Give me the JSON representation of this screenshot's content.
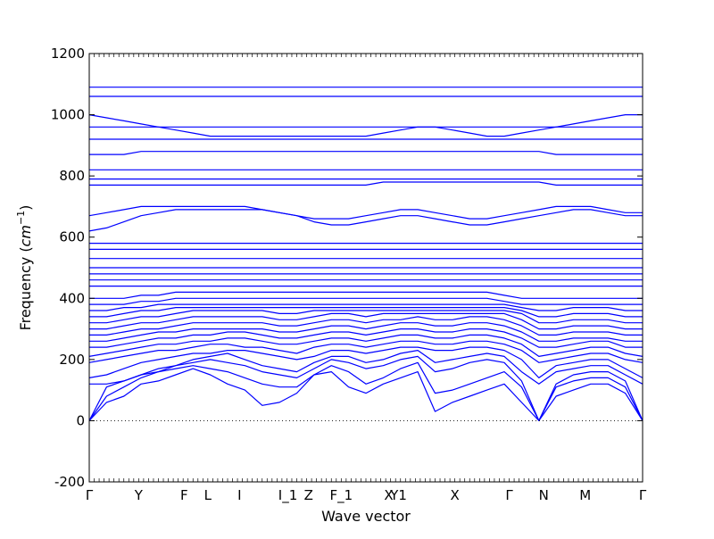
{
  "chart_data": {
    "type": "line",
    "xlabel": "Wave vector",
    "ylabel": "Frequency (cm⁻¹)",
    "ylabel_parts": {
      "prefix": "Frequency (",
      "unit": "cm",
      "exponent": "−1",
      "suffix": ")"
    },
    "ylim": [
      -200,
      1200
    ],
    "yticks": [
      -200,
      0,
      200,
      400,
      600,
      800,
      1000,
      1200
    ],
    "zero_line": "dotted",
    "grid": false,
    "legend": "none",
    "line_color": "#0000ff",
    "high_symmetry_points": [
      {
        "label": "Γ",
        "x": 0.0
      },
      {
        "label": "Y",
        "x": 0.5
      },
      {
        "label": "F",
        "x": 0.96
      },
      {
        "label": "L",
        "x": 1.2
      },
      {
        "label": "I",
        "x": 1.52
      },
      {
        "label": "I_1",
        "x": 2.01
      },
      {
        "label": "Z",
        "x": 2.22
      },
      {
        "label": "F_1",
        "x": 2.55
      },
      {
        "label": "X",
        "x": 3.03
      },
      {
        "label": "Y1",
        "x": 3.13
      },
      {
        "label": "X",
        "x": 3.7
      },
      {
        "label": "Γ",
        "x": 4.25
      },
      {
        "label": "N",
        "x": 4.6
      },
      {
        "label": "M",
        "x": 5.02
      },
      {
        "label": "Γ",
        "x": 5.6
      }
    ],
    "xlim": [
      0,
      5.6
    ],
    "series": [
      {
        "values": [
          0,
          60,
          80,
          120,
          130,
          150,
          170,
          150,
          120,
          100,
          50,
          60,
          90,
          150,
          160,
          110,
          90,
          120,
          140,
          160,
          30,
          60,
          80,
          100,
          120,
          60,
          0,
          80,
          100,
          120,
          120,
          90,
          0
        ]
      },
      {
        "values": [
          0,
          80,
          110,
          140,
          160,
          170,
          180,
          170,
          160,
          140,
          120,
          110,
          110,
          150,
          180,
          160,
          120,
          140,
          170,
          190,
          90,
          100,
          120,
          140,
          160,
          110,
          0,
          110,
          130,
          140,
          140,
          110,
          0
        ]
      },
      {
        "values": [
          0,
          110,
          130,
          150,
          170,
          180,
          190,
          200,
          190,
          180,
          160,
          150,
          140,
          170,
          200,
          190,
          170,
          180,
          200,
          210,
          160,
          170,
          190,
          200,
          190,
          130,
          0,
          120,
          150,
          160,
          160,
          130,
          0
        ]
      },
      {
        "values": [
          120,
          120,
          130,
          150,
          160,
          180,
          200,
          210,
          220,
          200,
          180,
          170,
          160,
          190,
          210,
          210,
          190,
          200,
          220,
          230,
          190,
          200,
          210,
          220,
          210,
          160,
          120,
          160,
          170,
          180,
          180,
          150,
          120
        ]
      },
      {
        "values": [
          140,
          150,
          170,
          190,
          200,
          210,
          220,
          220,
          230,
          230,
          220,
          210,
          200,
          210,
          230,
          230,
          220,
          230,
          240,
          240,
          230,
          230,
          240,
          240,
          230,
          200,
          140,
          180,
          190,
          200,
          200,
          170,
          140
        ]
      },
      {
        "values": [
          190,
          200,
          210,
          220,
          230,
          230,
          240,
          250,
          250,
          240,
          240,
          230,
          220,
          240,
          250,
          250,
          240,
          250,
          260,
          260,
          250,
          250,
          260,
          260,
          250,
          230,
          190,
          200,
          210,
          220,
          220,
          200,
          190
        ]
      },
      {
        "values": [
          210,
          220,
          230,
          240,
          250,
          250,
          260,
          260,
          270,
          270,
          260,
          250,
          250,
          260,
          270,
          270,
          260,
          270,
          280,
          280,
          270,
          270,
          280,
          280,
          270,
          250,
          210,
          220,
          230,
          240,
          240,
          220,
          210
        ]
      },
      {
        "values": [
          240,
          240,
          250,
          260,
          270,
          270,
          280,
          280,
          290,
          290,
          280,
          270,
          270,
          280,
          290,
          290,
          280,
          290,
          300,
          300,
          290,
          290,
          300,
          300,
          290,
          270,
          240,
          240,
          250,
          260,
          260,
          240,
          240
        ]
      },
      {
        "values": [
          260,
          260,
          270,
          280,
          290,
          290,
          300,
          300,
          300,
          300,
          300,
          290,
          290,
          300,
          310,
          310,
          300,
          310,
          320,
          320,
          310,
          310,
          320,
          320,
          310,
          290,
          260,
          260,
          270,
          270,
          270,
          260,
          260
        ]
      },
      {
        "values": [
          280,
          280,
          290,
          300,
          300,
          310,
          320,
          320,
          320,
          320,
          320,
          310,
          310,
          320,
          330,
          330,
          320,
          330,
          330,
          340,
          330,
          330,
          340,
          340,
          330,
          310,
          280,
          280,
          290,
          290,
          290,
          280,
          280
        ]
      },
      {
        "values": [
          300,
          300,
          310,
          320,
          320,
          330,
          340,
          340,
          340,
          340,
          340,
          330,
          330,
          340,
          350,
          350,
          340,
          350,
          350,
          350,
          350,
          350,
          350,
          350,
          350,
          330,
          300,
          300,
          310,
          310,
          310,
          300,
          300
        ]
      },
      {
        "values": [
          320,
          320,
          330,
          340,
          340,
          350,
          360,
          360,
          360,
          360,
          360,
          350,
          350,
          360,
          360,
          360,
          360,
          360,
          360,
          360,
          360,
          360,
          360,
          360,
          360,
          350,
          320,
          320,
          330,
          330,
          330,
          320,
          320
        ]
      },
      {
        "values": [
          340,
          340,
          350,
          360,
          360,
          370,
          370,
          370,
          370,
          370,
          370,
          370,
          370,
          370,
          370,
          370,
          370,
          370,
          370,
          370,
          370,
          370,
          370,
          370,
          370,
          360,
          340,
          340,
          350,
          350,
          350,
          340,
          340
        ]
      },
      {
        "values": [
          360,
          360,
          370,
          370,
          380,
          380,
          380,
          380,
          380,
          380,
          380,
          380,
          380,
          380,
          380,
          380,
          380,
          380,
          380,
          380,
          380,
          380,
          380,
          380,
          380,
          370,
          360,
          360,
          370,
          370,
          370,
          360,
          360
        ]
      },
      {
        "values": [
          380,
          380,
          380,
          390,
          390,
          400,
          400,
          400,
          400,
          400,
          400,
          400,
          400,
          400,
          400,
          400,
          400,
          400,
          400,
          400,
          400,
          400,
          400,
          400,
          390,
          380,
          380,
          380,
          380,
          380,
          380,
          380,
          380
        ]
      },
      {
        "values": [
          400,
          400,
          400,
          410,
          410,
          420,
          420,
          420,
          420,
          420,
          420,
          420,
          420,
          420,
          420,
          420,
          420,
          420,
          420,
          420,
          420,
          420,
          420,
          420,
          410,
          400,
          400,
          400,
          400,
          400,
          400,
          400,
          400
        ]
      },
      {
        "values": [
          440,
          440,
          440,
          440,
          440,
          440,
          440,
          440,
          440,
          440,
          440,
          440,
          440,
          440,
          440,
          440,
          440,
          440,
          440,
          440,
          440,
          440,
          440,
          440,
          440,
          440,
          440,
          440,
          440,
          440,
          440,
          440,
          440
        ]
      },
      {
        "values": [
          460,
          460,
          460,
          460,
          460,
          460,
          460,
          460,
          460,
          460,
          460,
          460,
          460,
          460,
          460,
          460,
          460,
          460,
          460,
          460,
          460,
          460,
          460,
          460,
          460,
          460,
          460,
          460,
          460,
          460,
          460,
          460,
          460
        ]
      },
      {
        "values": [
          480,
          480,
          480,
          480,
          480,
          480,
          480,
          480,
          480,
          480,
          480,
          480,
          480,
          480,
          480,
          480,
          480,
          480,
          480,
          480,
          480,
          480,
          480,
          480,
          480,
          480,
          480,
          480,
          480,
          480,
          480,
          480,
          480
        ]
      },
      {
        "values": [
          500,
          500,
          500,
          500,
          500,
          500,
          500,
          500,
          500,
          500,
          500,
          500,
          500,
          500,
          500,
          500,
          500,
          500,
          500,
          500,
          500,
          500,
          500,
          500,
          500,
          500,
          500,
          500,
          500,
          500,
          500,
          500,
          500
        ]
      },
      {
        "values": [
          530,
          530,
          530,
          530,
          530,
          530,
          530,
          530,
          530,
          530,
          530,
          530,
          530,
          530,
          530,
          530,
          530,
          530,
          530,
          530,
          530,
          530,
          530,
          530,
          530,
          530,
          530,
          530,
          530,
          530,
          530,
          530,
          530
        ]
      },
      {
        "values": [
          560,
          560,
          560,
          560,
          560,
          560,
          560,
          560,
          560,
          560,
          560,
          560,
          560,
          560,
          560,
          560,
          560,
          560,
          560,
          560,
          560,
          560,
          560,
          560,
          560,
          560,
          560,
          560,
          560,
          560,
          560,
          560,
          560
        ]
      },
      {
        "values": [
          580,
          580,
          580,
          580,
          580,
          580,
          580,
          580,
          580,
          580,
          580,
          580,
          580,
          580,
          580,
          580,
          580,
          580,
          580,
          580,
          580,
          580,
          580,
          580,
          580,
          580,
          580,
          580,
          580,
          580,
          580,
          580,
          580
        ]
      },
      {
        "values": [
          620,
          630,
          650,
          670,
          680,
          690,
          690,
          690,
          690,
          690,
          690,
          680,
          670,
          650,
          640,
          640,
          650,
          660,
          670,
          670,
          660,
          650,
          640,
          640,
          650,
          660,
          670,
          680,
          690,
          690,
          680,
          670,
          670
        ]
      },
      {
        "values": [
          670,
          680,
          690,
          700,
          700,
          700,
          700,
          700,
          700,
          700,
          690,
          680,
          670,
          660,
          660,
          660,
          670,
          680,
          690,
          690,
          680,
          670,
          660,
          660,
          670,
          680,
          690,
          700,
          700,
          700,
          690,
          680,
          680
        ]
      },
      {
        "values": [
          770,
          770,
          770,
          770,
          770,
          770,
          770,
          770,
          770,
          770,
          770,
          770,
          770,
          770,
          770,
          770,
          770,
          780,
          780,
          780,
          780,
          780,
          780,
          780,
          780,
          780,
          780,
          770,
          770,
          770,
          770,
          770,
          770
        ]
      },
      {
        "values": [
          790,
          790,
          790,
          790,
          790,
          790,
          790,
          790,
          790,
          790,
          790,
          790,
          790,
          790,
          790,
          790,
          790,
          790,
          790,
          790,
          790,
          790,
          790,
          790,
          790,
          790,
          790,
          790,
          790,
          790,
          790,
          790,
          790
        ]
      },
      {
        "values": [
          820,
          820,
          820,
          820,
          820,
          820,
          820,
          820,
          820,
          820,
          820,
          820,
          820,
          820,
          820,
          820,
          820,
          820,
          820,
          820,
          820,
          820,
          820,
          820,
          820,
          820,
          820,
          820,
          820,
          820,
          820,
          820,
          820
        ]
      },
      {
        "values": [
          870,
          870,
          870,
          880,
          880,
          880,
          880,
          880,
          880,
          880,
          880,
          880,
          880,
          880,
          880,
          880,
          880,
          880,
          880,
          880,
          880,
          880,
          880,
          880,
          880,
          880,
          880,
          870,
          870,
          870,
          870,
          870,
          870
        ]
      },
      {
        "values": [
          920,
          920,
          920,
          920,
          920,
          920,
          920,
          920,
          920,
          920,
          920,
          920,
          920,
          920,
          920,
          920,
          920,
          920,
          920,
          920,
          920,
          920,
          920,
          920,
          920,
          920,
          920,
          920,
          920,
          920,
          920,
          920,
          920
        ]
      },
      {
        "values": [
          960,
          960,
          960,
          960,
          960,
          960,
          960,
          960,
          960,
          960,
          960,
          960,
          960,
          960,
          960,
          960,
          960,
          960,
          960,
          960,
          960,
          960,
          960,
          960,
          960,
          960,
          960,
          960,
          960,
          960,
          960,
          960,
          960
        ]
      },
      {
        "values": [
          1000,
          990,
          980,
          970,
          960,
          950,
          940,
          930,
          930,
          930,
          930,
          930,
          930,
          930,
          930,
          930,
          930,
          940,
          950,
          960,
          960,
          950,
          940,
          930,
          930,
          940,
          950,
          960,
          970,
          980,
          990,
          1000,
          1000
        ]
      },
      {
        "values": [
          1060,
          1060,
          1060,
          1060,
          1060,
          1060,
          1060,
          1060,
          1060,
          1060,
          1060,
          1060,
          1060,
          1060,
          1060,
          1060,
          1060,
          1060,
          1060,
          1060,
          1060,
          1060,
          1060,
          1060,
          1060,
          1060,
          1060,
          1060,
          1060,
          1060,
          1060,
          1060,
          1060
        ]
      },
      {
        "values": [
          1090,
          1090,
          1090,
          1090,
          1090,
          1090,
          1090,
          1090,
          1090,
          1090,
          1090,
          1090,
          1090,
          1090,
          1090,
          1090,
          1090,
          1090,
          1090,
          1090,
          1090,
          1090,
          1090,
          1090,
          1090,
          1090,
          1090,
          1090,
          1090,
          1090,
          1090,
          1090,
          1090
        ]
      }
    ]
  }
}
